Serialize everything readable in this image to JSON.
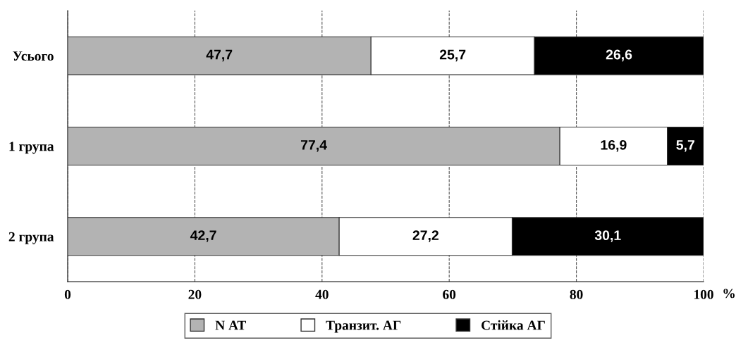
{
  "chart_data": {
    "type": "bar",
    "orientation": "horizontal",
    "stacked": true,
    "categories": [
      "Усього",
      "1 група",
      "2 група"
    ],
    "series": [
      {
        "name": "N АТ",
        "color": "#b3b3b3",
        "values": [
          47.7,
          77.4,
          42.7
        ],
        "value_labels": [
          "47,7",
          "77,4",
          "42,7"
        ]
      },
      {
        "name": "Транзит. АГ",
        "color": "#ffffff",
        "values": [
          25.7,
          16.9,
          27.2
        ],
        "value_labels": [
          "25,7",
          "16,9",
          "27,2"
        ]
      },
      {
        "name": "Стійка АГ",
        "color": "#000000",
        "values": [
          26.6,
          5.7,
          30.1
        ],
        "value_labels": [
          "26,6",
          "5,7",
          "30,1"
        ]
      }
    ],
    "xlabel": "%",
    "xlim": [
      0,
      100
    ],
    "xticks": [
      0,
      20,
      40,
      60,
      80,
      100
    ],
    "grid": "x",
    "legend": "bottom"
  }
}
